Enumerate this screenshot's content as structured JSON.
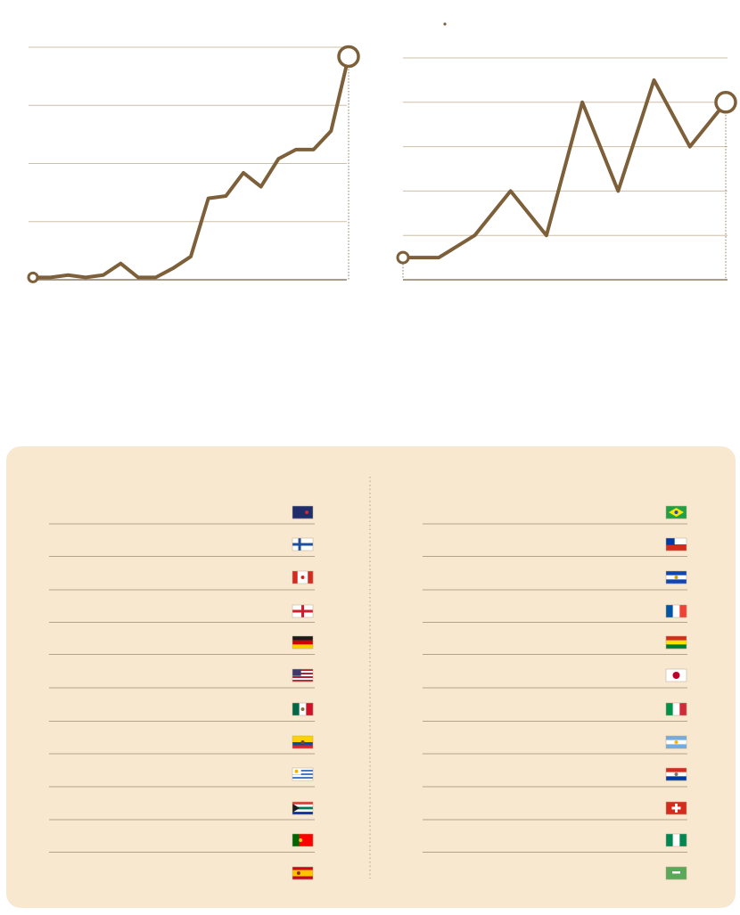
{
  "chart_data": [
    {
      "type": "line",
      "categories": [
        null,
        null,
        null,
        null,
        null,
        null,
        null,
        null,
        null,
        null,
        null,
        null,
        null,
        null,
        null,
        null,
        null,
        null,
        null
      ],
      "series": [
        {
          "color": "#7d5f3a",
          "values": [
            1,
            1,
            2,
            1,
            2,
            7,
            1,
            1,
            5,
            10,
            35,
            36,
            46,
            40,
            52,
            56,
            56,
            64,
            96
          ]
        }
      ],
      "ylim": [
        0,
        100
      ],
      "yticks": [
        0,
        25,
        50,
        75,
        100
      ],
      "grid": true
    },
    {
      "type": "line",
      "categories": [
        null,
        null,
        null,
        null,
        null,
        null,
        null,
        null,
        null,
        null
      ],
      "series": [
        {
          "color": "#7d5f3a",
          "values": [
            0.5,
            0.5,
            1,
            2,
            1,
            4,
            2,
            4.5,
            3,
            4
          ]
        }
      ],
      "ylim": [
        0,
        5
      ],
      "yticks": [
        0,
        1,
        2,
        3,
        4,
        5
      ],
      "grid": true
    }
  ]
}
